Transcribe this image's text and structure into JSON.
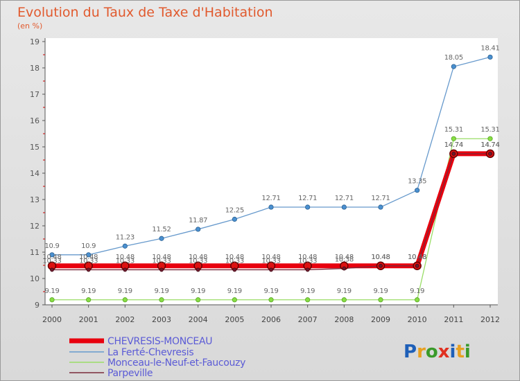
{
  "chart_data": {
    "type": "line",
    "title": "Evolution du Taux de Taxe d'Habitation",
    "subtitle": "(en %)",
    "x": [
      "2000",
      "2001",
      "2002",
      "2003",
      "2004",
      "2005",
      "2006",
      "2007",
      "2008",
      "2009",
      "2010",
      "2011",
      "2012"
    ],
    "ylim": [
      9,
      19
    ],
    "yticks": [
      9,
      10,
      11,
      12,
      13,
      14,
      15,
      16,
      17,
      18,
      19
    ],
    "grid": false,
    "legend_position": "bottom-left",
    "series": [
      {
        "name": "CHEVRESIS-MONCEAU",
        "color": "#e8000e",
        "values": [
          10.48,
          10.48,
          10.48,
          10.48,
          10.48,
          10.48,
          10.48,
          10.48,
          10.48,
          10.48,
          10.48,
          14.74,
          14.74
        ]
      },
      {
        "name": "La Ferté-Chevresis",
        "color": "#6699cc",
        "values": [
          10.9,
          10.9,
          11.23,
          11.52,
          11.87,
          12.25,
          12.71,
          12.71,
          12.71,
          12.71,
          13.35,
          18.05,
          18.41
        ]
      },
      {
        "name": "Monceau-le-Neuf-et-Faucouzy",
        "color": "#99dd66",
        "values": [
          9.19,
          9.19,
          9.19,
          9.19,
          9.19,
          9.19,
          9.19,
          9.19,
          9.19,
          9.19,
          9.19,
          15.31,
          15.31
        ]
      },
      {
        "name": "Parpeville",
        "color": "#7a2a3a",
        "values": [
          10.33,
          10.33,
          10.33,
          10.33,
          10.33,
          10.33,
          10.33,
          10.33,
          10.38,
          10.48,
          10.48,
          14.74,
          14.74
        ]
      }
    ]
  },
  "logo": {
    "text": "Proxiti"
  }
}
